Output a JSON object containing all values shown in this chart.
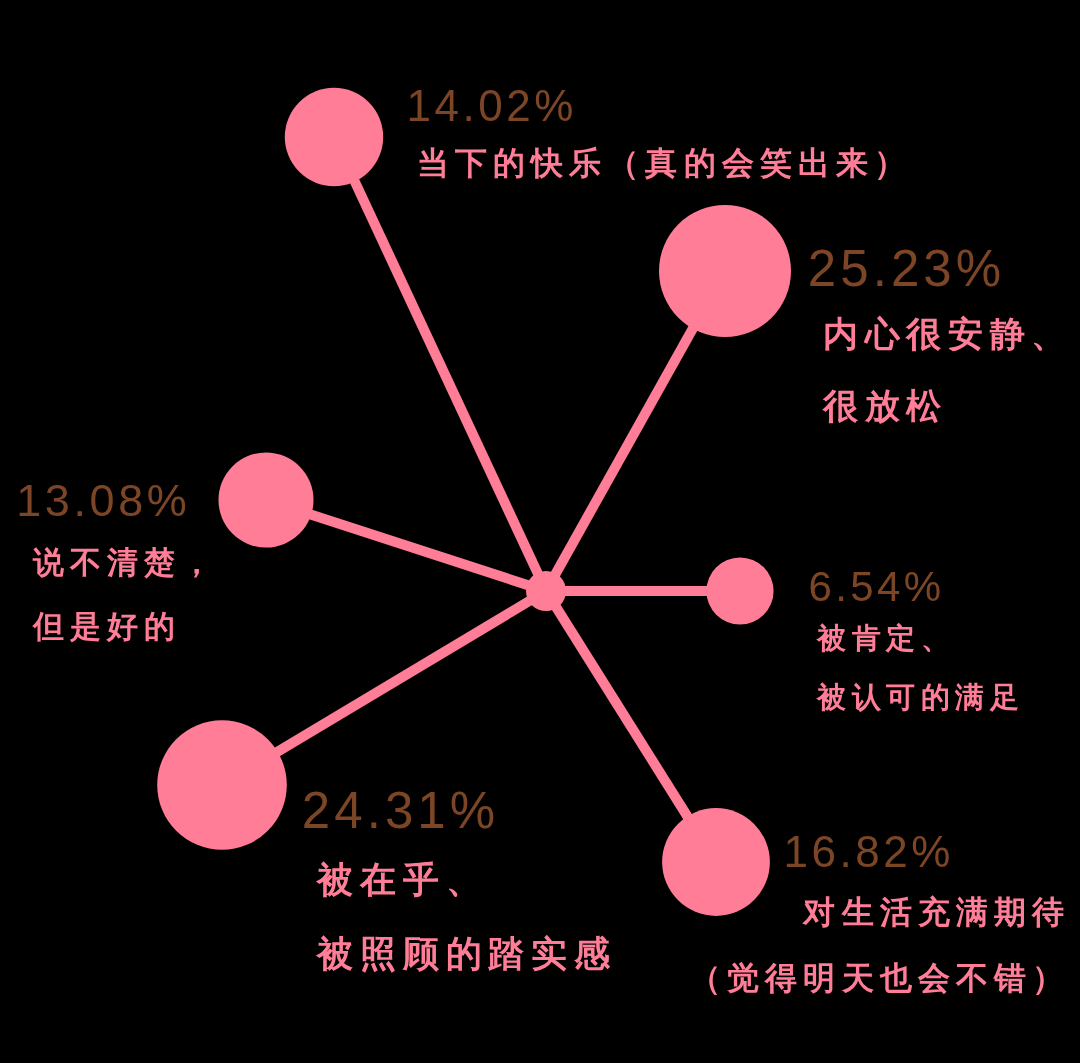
{
  "chart_data": {
    "type": "other",
    "categories": [
      "当下的快乐（真的会笑出来）",
      "内心很安静、很放松",
      "被肯定、被认可的满足",
      "对生活充满期待（觉得明天也会不错）",
      "被在乎、被照顾的踏实感",
      "说不清楚，但是好的"
    ],
    "values": [
      14.02,
      25.23,
      6.54,
      16.82,
      24.31,
      13.08
    ],
    "value_labels": [
      "14.02%",
      "25.23%",
      "6.54%",
      "16.82%",
      "24.31%",
      "13.08%"
    ],
    "color": "#ff7d96"
  }
}
